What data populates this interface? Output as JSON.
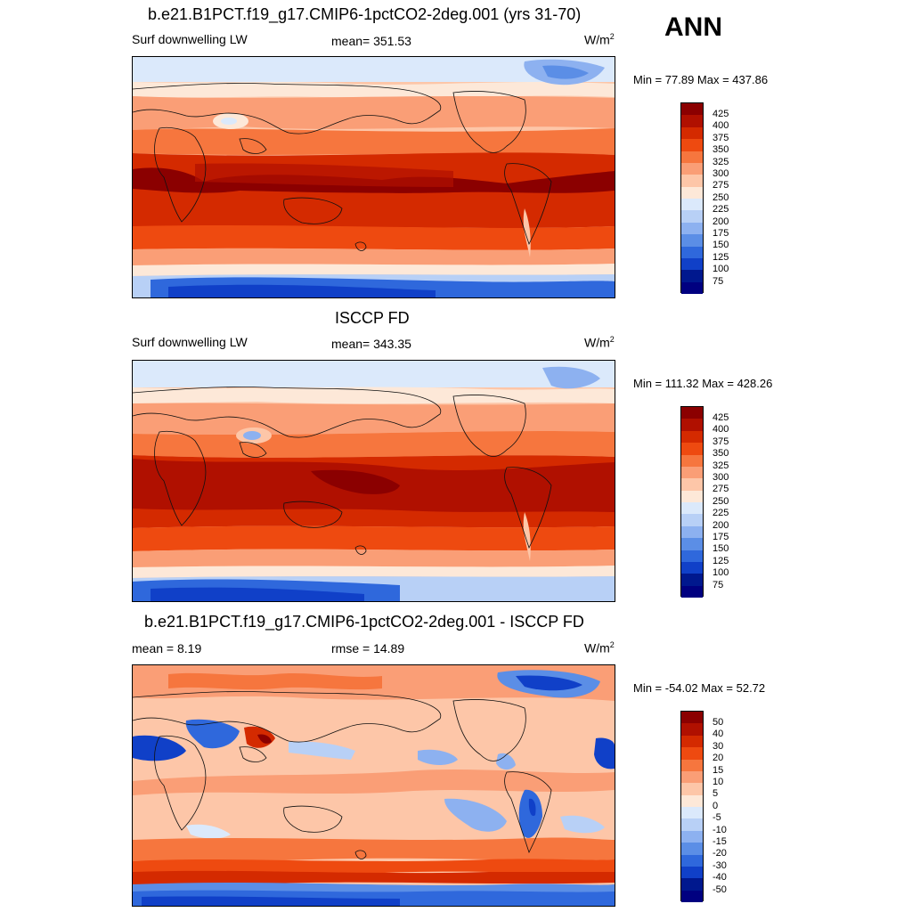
{
  "season": "ANN",
  "panels": [
    {
      "title": "b.e21.B1PCT.f19_g17.CMIP6-1pctCO2-2deg.001 (yrs 31-70)",
      "left_label": "Surf downwelling LW",
      "center_label": "mean= 351.53",
      "units_base": "W/m",
      "units_exp": "2",
      "minmax": "Min =  77.89 Max = 437.86",
      "colorbar": {
        "labels": [
          "425",
          "400",
          "375",
          "350",
          "325",
          "300",
          "275",
          "250",
          "225",
          "200",
          "175",
          "150",
          "125",
          "100",
          "75"
        ],
        "colors": [
          "#8b0000",
          "#b01000",
          "#d42a00",
          "#ee4a10",
          "#f6763e",
          "#fa9e76",
          "#fdc6a8",
          "#fde8d8",
          "#dbe9fb",
          "#b8d0f6",
          "#8db1f0",
          "#5b8ee6",
          "#2f68dc",
          "#1040c8",
          "#00188e",
          "#000080"
        ]
      }
    },
    {
      "title": "ISCCP FD",
      "left_label": "Surf downwelling LW",
      "center_label": "mean= 343.35",
      "units_base": "W/m",
      "units_exp": "2",
      "minmax": "Min = 111.32 Max = 428.26",
      "colorbar": {
        "labels": [
          "425",
          "400",
          "375",
          "350",
          "325",
          "300",
          "275",
          "250",
          "225",
          "200",
          "175",
          "150",
          "125",
          "100",
          "75"
        ],
        "colors": [
          "#8b0000",
          "#b01000",
          "#d42a00",
          "#ee4a10",
          "#f6763e",
          "#fa9e76",
          "#fdc6a8",
          "#fde8d8",
          "#dbe9fb",
          "#b8d0f6",
          "#8db1f0",
          "#5b8ee6",
          "#2f68dc",
          "#1040c8",
          "#00188e",
          "#000080"
        ]
      }
    },
    {
      "title": "b.e21.B1PCT.f19_g17.CMIP6-1pctCO2-2deg.001 - ISCCP FD",
      "left_label": "mean =   8.19",
      "center_label": "rmse =  14.89",
      "units_base": "W/m",
      "units_exp": "2",
      "minmax": "Min = -54.02 Max =  52.72",
      "colorbar": {
        "labels": [
          "50",
          "40",
          "30",
          "20",
          "15",
          "10",
          "5",
          "0",
          "-5",
          "-10",
          "-15",
          "-20",
          "-30",
          "-40",
          "-50"
        ],
        "colors": [
          "#8b0000",
          "#b01000",
          "#d42a00",
          "#ee4a10",
          "#f6763e",
          "#fa9e76",
          "#fdc6a8",
          "#fde8d8",
          "#dbe9fb",
          "#b8d0f6",
          "#8db1f0",
          "#5b8ee6",
          "#2f68dc",
          "#1040c8",
          "#00188e",
          "#000080"
        ]
      }
    }
  ]
}
